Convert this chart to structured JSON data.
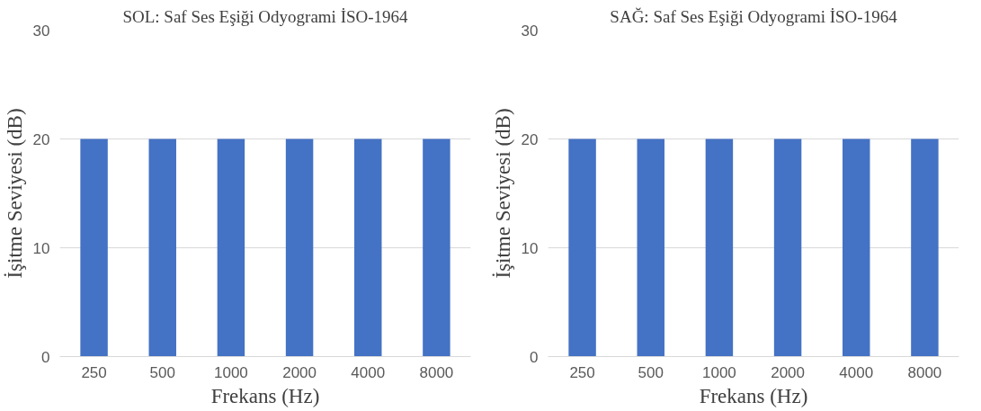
{
  "chart_data": [
    {
      "type": "bar",
      "title": "SOL: Saf Ses Eşiği Odyogrami İSO-1964",
      "xlabel": "Frekans (Hz)",
      "ylabel": "İşitme Seviyesi (dB)",
      "categories": [
        "250",
        "500",
        "1000",
        "2000",
        "4000",
        "8000"
      ],
      "values": [
        20,
        20,
        20,
        20,
        20,
        20
      ],
      "color": "#4472c4",
      "ylim": [
        0,
        30
      ],
      "yticks": [
        0,
        10,
        20,
        30
      ],
      "grid": "y"
    },
    {
      "type": "bar",
      "title": "SAĞ: Saf Ses Eşiği Odyogrami İSO-1964",
      "xlabel": "Frekans (Hz)",
      "ylabel": "İşitme Seviyesi (dB)",
      "categories": [
        "250",
        "500",
        "1000",
        "2000",
        "4000",
        "8000"
      ],
      "values": [
        20,
        20,
        20,
        20,
        20,
        20
      ],
      "color": "#4472c4",
      "ylim": [
        0,
        30
      ],
      "yticks": [
        0,
        10,
        20,
        30
      ],
      "grid": "y"
    }
  ]
}
